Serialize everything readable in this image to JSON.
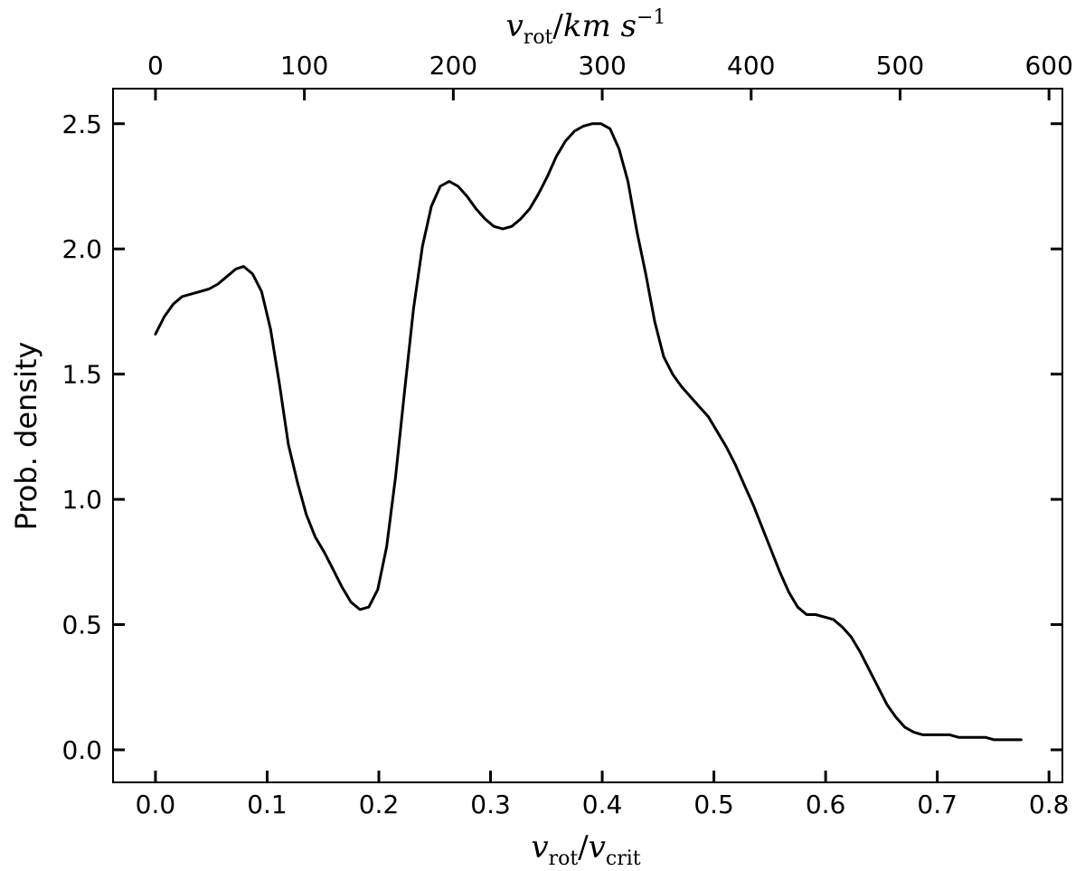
{
  "chart_data": {
    "type": "line",
    "title": "",
    "xlabel": "v_rot/v_crit",
    "ylabel": "Prob. density",
    "top_xlabel": "v_rot/km s^-1",
    "xlim": [
      -0.038,
      0.812
    ],
    "ylim": [
      -0.13,
      2.64
    ],
    "top_xlim": [
      -28.5,
      609
    ],
    "x_ticks": [
      0.0,
      0.1,
      0.2,
      0.3,
      0.4,
      0.5,
      0.6,
      0.7,
      0.8
    ],
    "x_tick_labels": [
      "0.0",
      "0.1",
      "0.2",
      "0.3",
      "0.4",
      "0.5",
      "0.6",
      "0.7",
      "0.8"
    ],
    "y_ticks": [
      0.0,
      0.5,
      1.0,
      1.5,
      2.0,
      2.5
    ],
    "y_tick_labels": [
      "0.0",
      "0.5",
      "1.0",
      "1.5",
      "2.0",
      "2.5"
    ],
    "top_ticks": [
      0,
      100,
      200,
      300,
      400,
      500,
      600
    ],
    "top_tick_labels": [
      "0",
      "100",
      "200",
      "300",
      "400",
      "500",
      "600"
    ],
    "grid": false,
    "line_color": "#000000",
    "series": [
      {
        "x": [
          0.0,
          0.008,
          0.016,
          0.024,
          0.032,
          0.04,
          0.048,
          0.056,
          0.064,
          0.072,
          0.079,
          0.087,
          0.095,
          0.103,
          0.111,
          0.119,
          0.127,
          0.135,
          0.143,
          0.151,
          0.159,
          0.167,
          0.175,
          0.183,
          0.191,
          0.199,
          0.207,
          0.215,
          0.223,
          0.231,
          0.239,
          0.247,
          0.255,
          0.263,
          0.271,
          0.279,
          0.287,
          0.295,
          0.303,
          0.311,
          0.319,
          0.327,
          0.335,
          0.343,
          0.351,
          0.359,
          0.367,
          0.375,
          0.383,
          0.391,
          0.399,
          0.407,
          0.415,
          0.423,
          0.431,
          0.439,
          0.447,
          0.455,
          0.463,
          0.471,
          0.479,
          0.487,
          0.495,
          0.503,
          0.511,
          0.519,
          0.527,
          0.535,
          0.543,
          0.551,
          0.559,
          0.567,
          0.575,
          0.583,
          0.591,
          0.599,
          0.607,
          0.615,
          0.623,
          0.631,
          0.639,
          0.647,
          0.655,
          0.663,
          0.671,
          0.679,
          0.687,
          0.695,
          0.703,
          0.711,
          0.719,
          0.727,
          0.735,
          0.743,
          0.751,
          0.759,
          0.767,
          0.775
        ],
        "y": [
          1.66,
          1.73,
          1.78,
          1.81,
          1.82,
          1.83,
          1.84,
          1.86,
          1.89,
          1.92,
          1.93,
          1.9,
          1.83,
          1.68,
          1.46,
          1.22,
          1.07,
          0.94,
          0.85,
          0.79,
          0.72,
          0.65,
          0.59,
          0.56,
          0.57,
          0.64,
          0.81,
          1.09,
          1.43,
          1.76,
          2.01,
          2.17,
          2.25,
          2.27,
          2.25,
          2.21,
          2.16,
          2.12,
          2.09,
          2.08,
          2.09,
          2.12,
          2.16,
          2.22,
          2.29,
          2.37,
          2.43,
          2.47,
          2.49,
          2.5,
          2.5,
          2.48,
          2.4,
          2.27,
          2.07,
          1.9,
          1.71,
          1.57,
          1.5,
          1.45,
          1.41,
          1.37,
          1.33,
          1.27,
          1.21,
          1.14,
          1.06,
          0.98,
          0.89,
          0.8,
          0.71,
          0.63,
          0.57,
          0.54,
          0.54,
          0.53,
          0.52,
          0.49,
          0.45,
          0.39,
          0.32,
          0.25,
          0.18,
          0.13,
          0.09,
          0.07,
          0.06,
          0.06,
          0.06,
          0.06,
          0.05,
          0.05,
          0.05,
          0.05,
          0.04,
          0.04,
          0.04,
          0.04
        ]
      }
    ]
  }
}
